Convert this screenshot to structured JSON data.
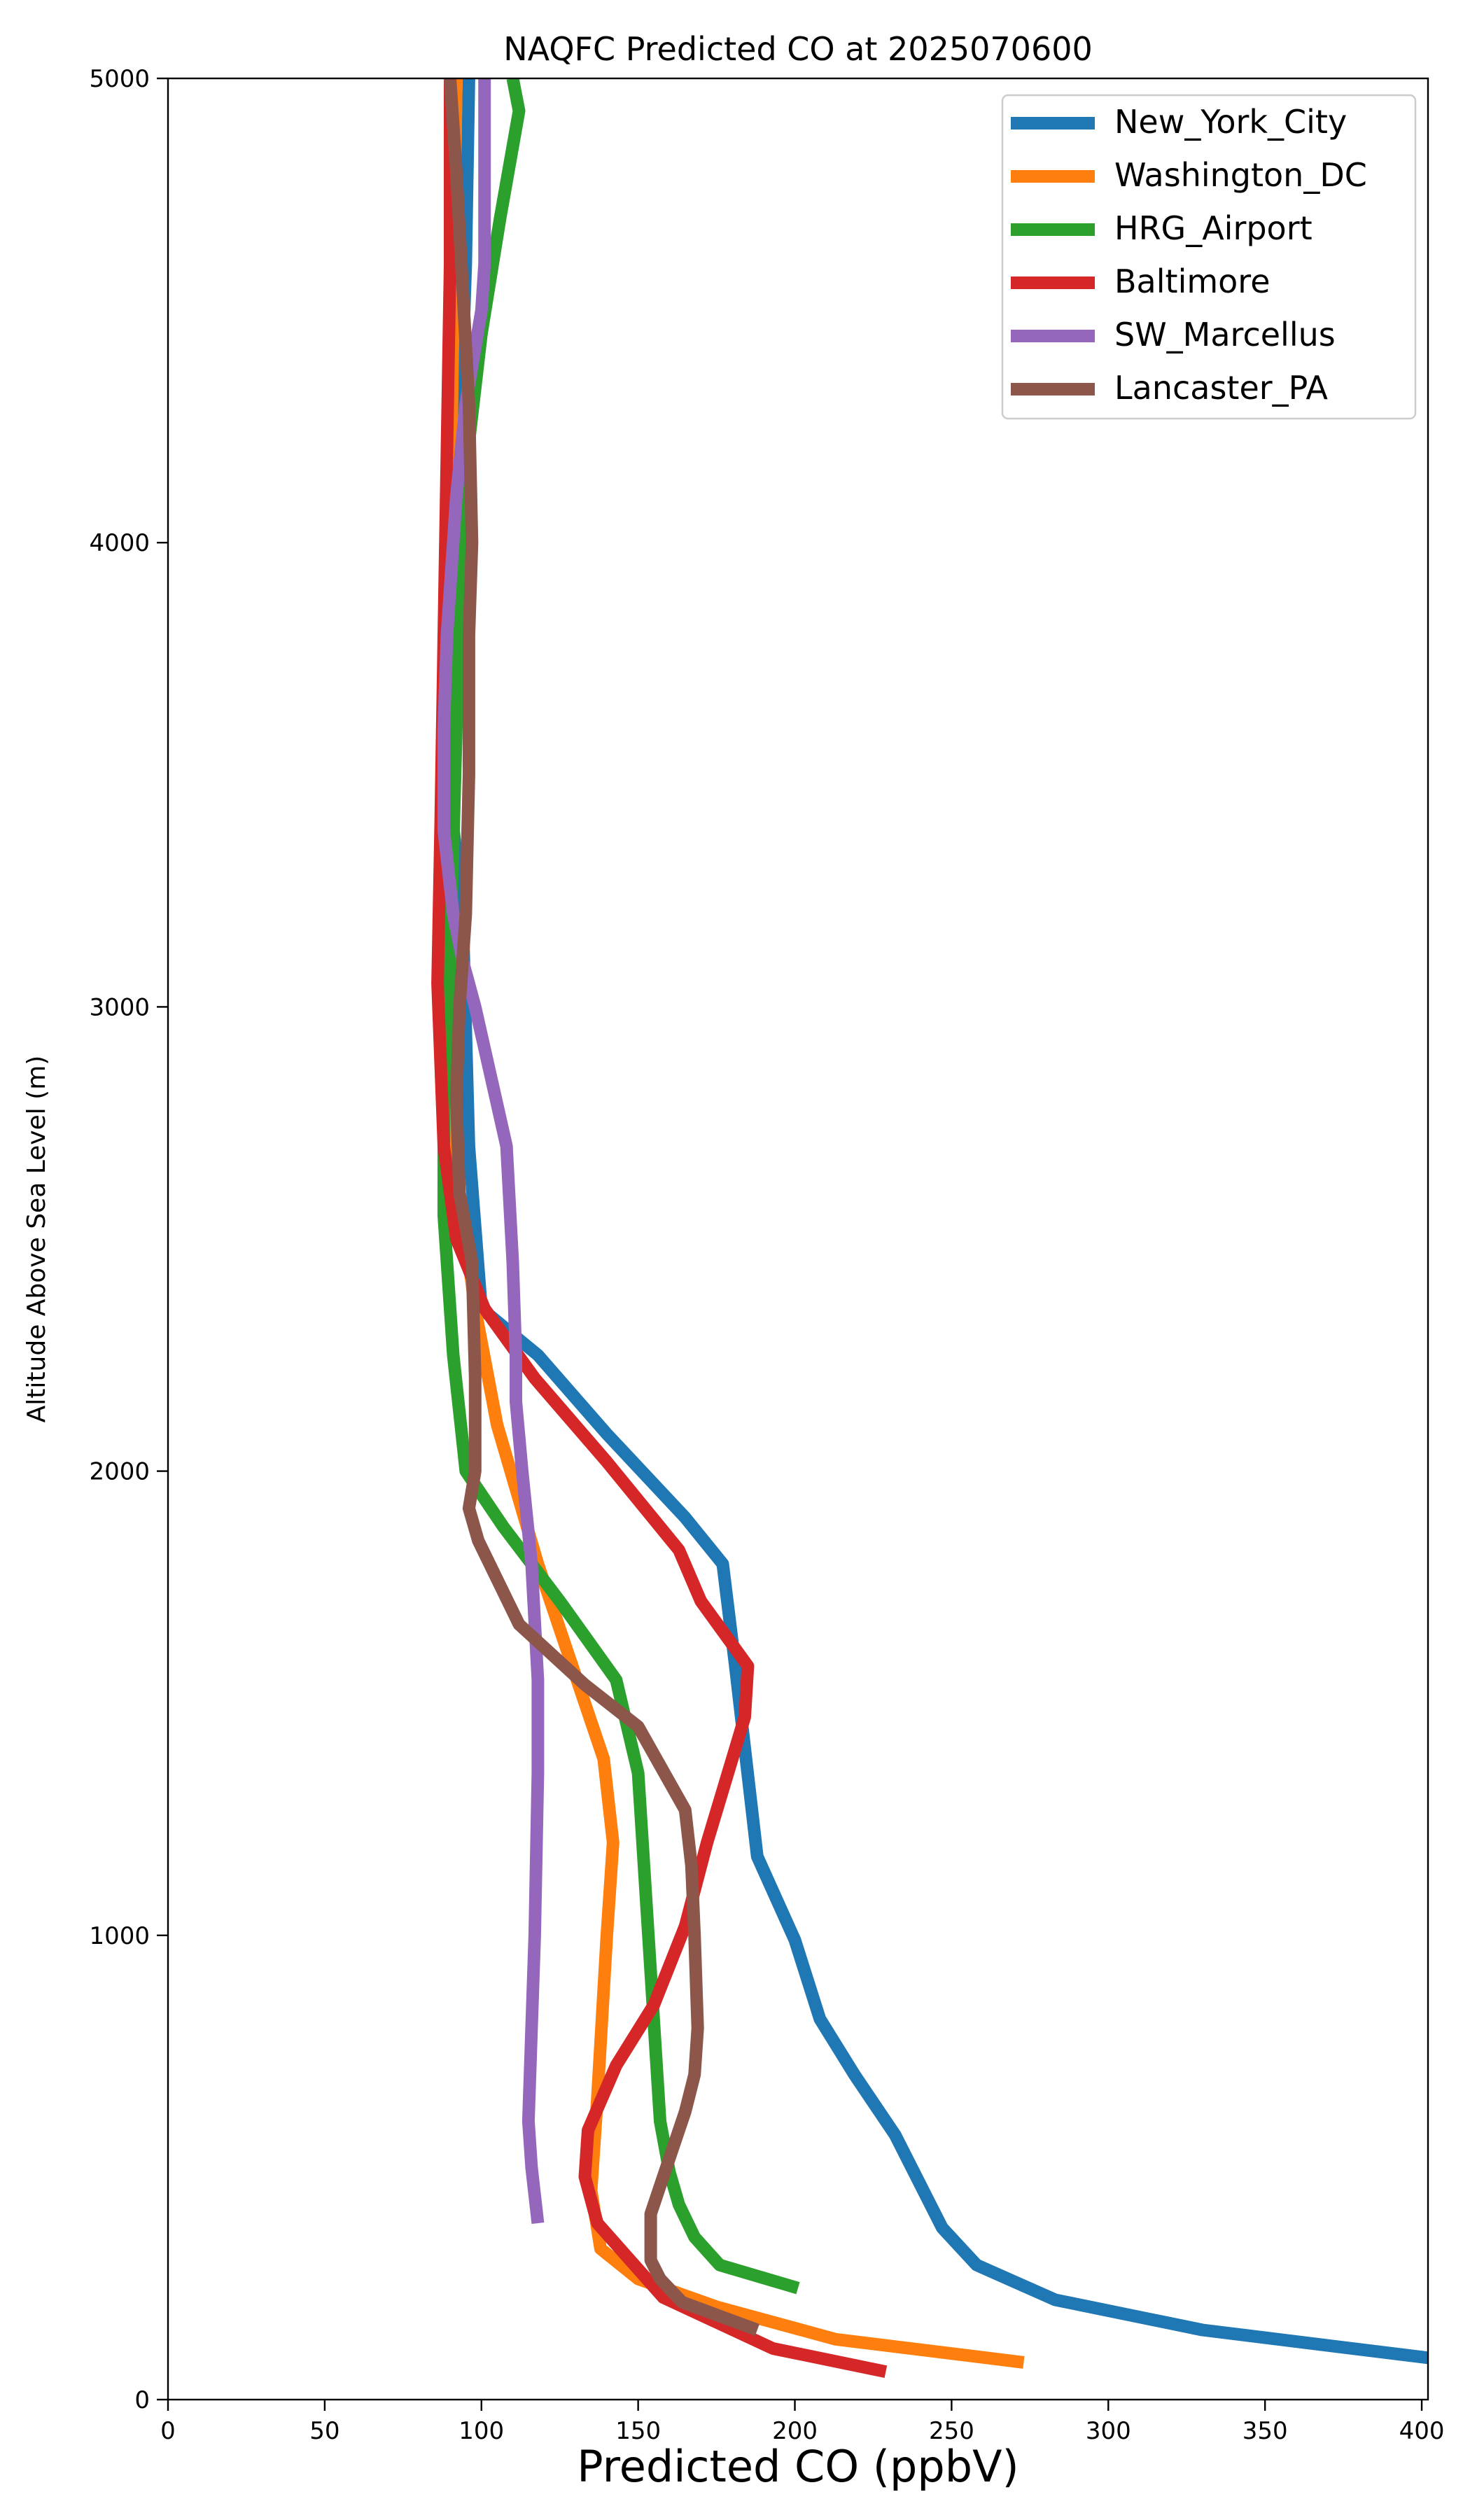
{
  "chart_data": {
    "type": "line",
    "title": "NAQFC Predicted CO at 2025070600",
    "xlabel": "Predicted CO (ppbV)",
    "ylabel": "Altitude Above Sea Level (m)",
    "xlim": [
      0,
      402
    ],
    "ylim": [
      0,
      5000
    ],
    "xticks": [
      0,
      50,
      100,
      150,
      200,
      250,
      300,
      350,
      400
    ],
    "yticks": [
      0,
      1000,
      2000,
      3000,
      4000,
      5000
    ],
    "grid": false,
    "legend_position": "upper right",
    "series": [
      {
        "name": "New_York_City",
        "color": "#1f77b4",
        "points": [
          [
            402,
            90
          ],
          [
            330,
            150
          ],
          [
            283,
            215
          ],
          [
            258,
            290
          ],
          [
            247,
            370
          ],
          [
            232,
            570
          ],
          [
            219,
            700
          ],
          [
            208,
            820
          ],
          [
            200,
            990
          ],
          [
            188,
            1170
          ],
          [
            181,
            1580
          ],
          [
            177,
            1800
          ],
          [
            165,
            1900
          ],
          [
            140,
            2080
          ],
          [
            118,
            2250
          ],
          [
            100,
            2350
          ],
          [
            96,
            2700
          ],
          [
            94,
            3200
          ],
          [
            90,
            3450
          ],
          [
            91,
            3800
          ],
          [
            93,
            4200
          ],
          [
            95,
            4600
          ],
          [
            96,
            5000
          ]
        ]
      },
      {
        "name": "Washington_DC",
        "color": "#ff7f0e",
        "points": [
          [
            273,
            80
          ],
          [
            213,
            130
          ],
          [
            175,
            200
          ],
          [
            150,
            260
          ],
          [
            138,
            325
          ],
          [
            135,
            450
          ],
          [
            137,
            650
          ],
          [
            140,
            1000
          ],
          [
            142,
            1200
          ],
          [
            139,
            1380
          ],
          [
            128,
            1600
          ],
          [
            118,
            1800
          ],
          [
            105,
            2100
          ],
          [
            98,
            2350
          ],
          [
            91,
            2700
          ],
          [
            88,
            3100
          ],
          [
            89,
            3500
          ],
          [
            90,
            4000
          ],
          [
            91,
            4500
          ],
          [
            92,
            5000
          ]
        ]
      },
      {
        "name": "HRG_Airport",
        "color": "#2ca02c",
        "points": [
          [
            201,
            240
          ],
          [
            176,
            290
          ],
          [
            168,
            350
          ],
          [
            163,
            420
          ],
          [
            160,
            490
          ],
          [
            157,
            600
          ],
          [
            150,
            1350
          ],
          [
            143,
            1550
          ],
          [
            125,
            1720
          ],
          [
            107,
            1880
          ],
          [
            95,
            2000
          ],
          [
            91,
            2250
          ],
          [
            88,
            2550
          ],
          [
            88,
            2800
          ],
          [
            90,
            3100
          ],
          [
            92,
            3600
          ],
          [
            94,
            4100
          ],
          [
            100,
            4450
          ],
          [
            106,
            4700
          ],
          [
            112,
            4930
          ],
          [
            110,
            5000
          ]
        ]
      },
      {
        "name": "Baltimore",
        "color": "#d62728",
        "points": [
          [
            229,
            60
          ],
          [
            193,
            110
          ],
          [
            158,
            220
          ],
          [
            137,
            380
          ],
          [
            133,
            480
          ],
          [
            134,
            580
          ],
          [
            143,
            720
          ],
          [
            155,
            850
          ],
          [
            165,
            1020
          ],
          [
            172,
            1200
          ],
          [
            180,
            1380
          ],
          [
            184,
            1470
          ],
          [
            185,
            1580
          ],
          [
            170,
            1720
          ],
          [
            163,
            1830
          ],
          [
            140,
            2020
          ],
          [
            117,
            2200
          ],
          [
            101,
            2350
          ],
          [
            92,
            2500
          ],
          [
            88,
            2700
          ],
          [
            86,
            3050
          ],
          [
            87,
            3400
          ],
          [
            88,
            3800
          ],
          [
            89,
            4200
          ],
          [
            90,
            4600
          ],
          [
            90,
            5000
          ]
        ]
      },
      {
        "name": "SW_Marcellus",
        "color": "#9467bd",
        "points": [
          [
            118,
            380
          ],
          [
            116,
            500
          ],
          [
            115,
            600
          ],
          [
            116,
            800
          ],
          [
            117,
            1000
          ],
          [
            118,
            1350
          ],
          [
            118,
            1550
          ],
          [
            116,
            1800
          ],
          [
            113,
            2000
          ],
          [
            111,
            2150
          ],
          [
            111,
            2250
          ],
          [
            110,
            2450
          ],
          [
            108,
            2700
          ],
          [
            103,
            2850
          ],
          [
            98,
            3000
          ],
          [
            94,
            3100
          ],
          [
            91,
            3200
          ],
          [
            88,
            3380
          ],
          [
            88,
            3600
          ],
          [
            89,
            3800
          ],
          [
            92,
            4100
          ],
          [
            95,
            4300
          ],
          [
            100,
            4500
          ],
          [
            101,
            4600
          ],
          [
            101,
            5000
          ]
        ]
      },
      {
        "name": "Lancaster_PA",
        "color": "#8c564b",
        "points": [
          [
            188,
            150
          ],
          [
            164,
            210
          ],
          [
            157,
            260
          ],
          [
            154,
            300
          ],
          [
            154,
            400
          ],
          [
            159,
            500
          ],
          [
            165,
            620
          ],
          [
            168,
            700
          ],
          [
            169,
            800
          ],
          [
            168,
            1000
          ],
          [
            167,
            1150
          ],
          [
            165,
            1270
          ],
          [
            150,
            1450
          ],
          [
            133,
            1540
          ],
          [
            112,
            1670
          ],
          [
            99,
            1850
          ],
          [
            96,
            1920
          ],
          [
            98,
            2000
          ],
          [
            98,
            2200
          ],
          [
            97,
            2450
          ],
          [
            93,
            2600
          ],
          [
            92,
            2800
          ],
          [
            93,
            3000
          ],
          [
            95,
            3200
          ],
          [
            96,
            3500
          ],
          [
            96,
            3800
          ],
          [
            97,
            4000
          ],
          [
            96,
            4300
          ],
          [
            94,
            4550
          ],
          [
            92,
            4800
          ],
          [
            90,
            5000
          ]
        ]
      }
    ]
  }
}
